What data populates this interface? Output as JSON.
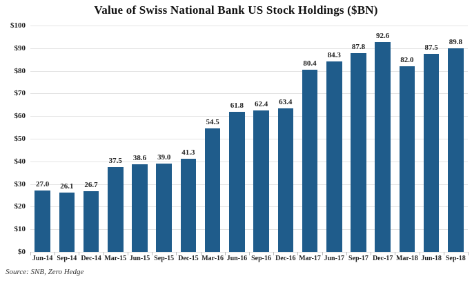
{
  "chart_data": {
    "type": "bar",
    "title": "Value of Swiss National Bank US Stock Holdings ($BN)",
    "categories": [
      "Jun-14",
      "Sep-14",
      "Dec-14",
      "Mar-15",
      "Jun-15",
      "Sep-15",
      "Dec-15",
      "Mar-16",
      "Jun-16",
      "Sep-16",
      "Dec-16",
      "Mar-17",
      "Jun-17",
      "Sep-17",
      "Dec-17",
      "Mar-18",
      "Jun-18",
      "Sep-18"
    ],
    "values": [
      27.0,
      26.1,
      26.7,
      37.5,
      38.6,
      39.0,
      41.3,
      54.5,
      61.8,
      62.4,
      63.4,
      80.4,
      84.3,
      87.8,
      92.6,
      82.0,
      87.5,
      89.8
    ],
    "value_labels": [
      "27.0",
      "26.1",
      "26.7",
      "37.5",
      "38.6",
      "39.0",
      "41.3",
      "54.5",
      "61.8",
      "62.4",
      "63.4",
      "80.4",
      "84.3",
      "87.8",
      "92.6",
      "82.0",
      "87.5",
      "89.8"
    ],
    "xlabel": "",
    "ylabel": "",
    "ylim": [
      0,
      100
    ],
    "ytick_step": 10,
    "ytick_labels": [
      "$0",
      "$10",
      "$20",
      "$30",
      "$40",
      "$50",
      "$60",
      "$70",
      "$80",
      "$90",
      "$100"
    ],
    "grid": "horizontal",
    "legend": "none",
    "bar_color": "#1f5c8b",
    "gridline_color": "#e3e3e3",
    "source": "Source: SNB, Zero Hedge"
  }
}
